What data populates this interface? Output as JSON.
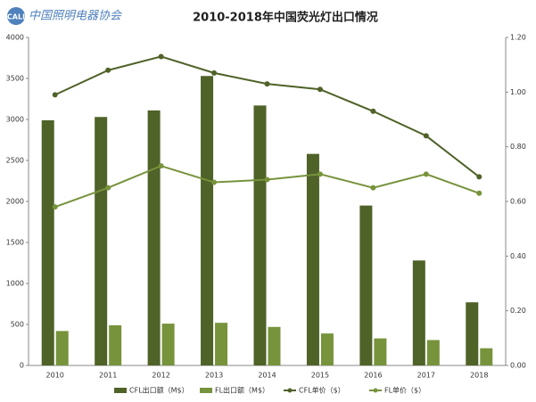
{
  "logo": "中国照明电器协会",
  "chart_data": {
    "type": "bar-line",
    "title": "2010-2018年中国荧光灯出口情况",
    "categories": [
      "2010",
      "2011",
      "2012",
      "2013",
      "2014",
      "2015",
      "2016",
      "2017",
      "2018"
    ],
    "series": [
      {
        "name": "CFL出口额（M$）",
        "type": "bar",
        "color": "#4f6228",
        "values": [
          2990,
          3030,
          3110,
          3530,
          3170,
          2580,
          1950,
          1280,
          770
        ]
      },
      {
        "name": "FL出口额（M$）",
        "type": "bar",
        "color": "#77933c",
        "values": [
          420,
          490,
          510,
          520,
          470,
          390,
          330,
          310,
          210
        ]
      },
      {
        "name": "CFL单价（$）",
        "type": "line",
        "axis": "y2",
        "color": "#4f6228",
        "values": [
          0.99,
          1.08,
          1.13,
          1.07,
          1.03,
          1.01,
          0.93,
          0.84,
          0.69
        ]
      },
      {
        "name": "FL单价（$）",
        "type": "line",
        "axis": "y2",
        "color": "#77933c",
        "values": [
          0.58,
          0.65,
          0.73,
          0.67,
          0.68,
          0.7,
          0.65,
          0.7,
          0.63
        ]
      }
    ],
    "ylim": [
      0,
      4000
    ],
    "yticks": [
      0,
      500,
      1000,
      1500,
      2000,
      2500,
      3000,
      3500,
      4000
    ],
    "y2lim": [
      0,
      1.2
    ],
    "y2ticks": [
      {
        "value": 0,
        "label": "0.00"
      },
      {
        "value": 0.2,
        "label": "0.20"
      },
      {
        "value": 0.4,
        "label": "0.40"
      },
      {
        "value": 0.6,
        "label": "0.60"
      },
      {
        "value": 0.8,
        "label": "0.80"
      },
      {
        "value": 1.0,
        "label": "1.00"
      },
      {
        "value": 1.2,
        "label": "1.20"
      }
    ],
    "legend": "bottom"
  }
}
